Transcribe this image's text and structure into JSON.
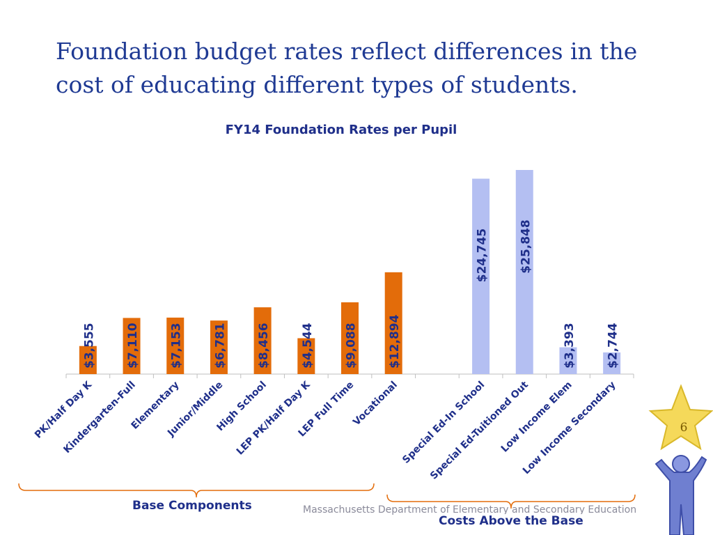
{
  "slide": {
    "title": "Foundation budget rates reflect differences in the cost of educating different types of students.",
    "footer": "Massachusetts Department of Elementary and Secondary Education",
    "page_number": "6"
  },
  "chart_data": {
    "type": "bar",
    "title": "FY14 Foundation Rates per Pupil",
    "xlabel": "",
    "ylabel": "",
    "ylim": [
      0,
      25848
    ],
    "grid": false,
    "categories": [
      "PK/Half Day K",
      "Kindergarten-Full",
      "Elementary",
      "Junior/Middle",
      "High School",
      "LEP PK/Half Day K",
      "LEP Full Time",
      "Vocational",
      "",
      "Special Ed-In School",
      "Special Ed-Tuitioned Out",
      "Low Income Elem",
      "Low Income Secondary"
    ],
    "values": [
      3555,
      7110,
      7153,
      6781,
      8456,
      4544,
      9088,
      12894,
      null,
      24745,
      25848,
      3393,
      2744
    ],
    "data_labels": [
      "$3,555",
      "$7,110",
      "$7,153",
      "$6,781",
      "$8,456",
      "$4,544",
      "$9,088",
      "$12,894",
      "",
      "$24,745",
      "$25,848",
      "$3,393",
      "$2,744"
    ],
    "groups": [
      {
        "label": "Base Components",
        "color": "#e36c0a"
      },
      {
        "label": "Costs Above the Base",
        "color": "#b4bff2"
      }
    ],
    "bar_group": [
      "base",
      "base",
      "base",
      "base",
      "base",
      "base",
      "base",
      "base",
      null,
      "above",
      "above",
      "above",
      "above"
    ],
    "colors": {
      "base": "#e36c0a",
      "above": "#b4bff2",
      "axis": "#bfbfbf",
      "label": "#1f2f8a",
      "brace": "#e36c0a"
    }
  }
}
